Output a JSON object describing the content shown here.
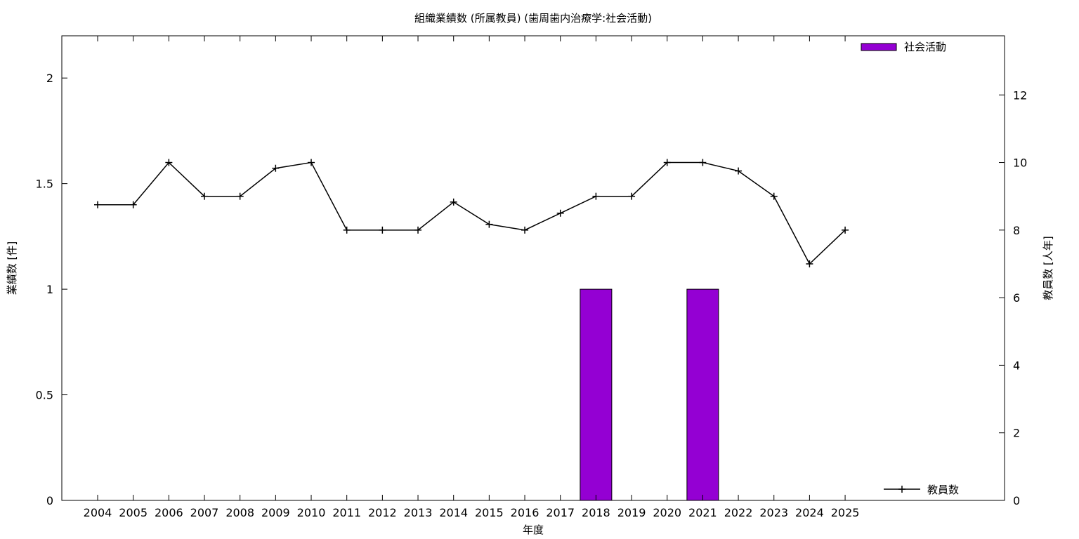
{
  "chart_data": {
    "type": "bar",
    "title": "組織業績数 (所属教員) (歯周歯内治療学:社会活動)",
    "xlabel": "年度",
    "ylabel": "業績数 [件]",
    "y2label": "教員数 [人年]",
    "categories": [
      "2004",
      "2005",
      "2006",
      "2007",
      "2008",
      "2009",
      "2010",
      "2011",
      "2012",
      "2013",
      "2014",
      "2015",
      "2016",
      "2017",
      "2018",
      "2019",
      "2020",
      "2021",
      "2022",
      "2023",
      "2024",
      "2025"
    ],
    "ylim": [
      0,
      2.2
    ],
    "yticks": [
      "0",
      "0.5",
      "1",
      "1.5",
      "2"
    ],
    "y2lim": [
      0,
      13.75
    ],
    "y2ticks": [
      "0",
      "2",
      "4",
      "6",
      "8",
      "10",
      "12"
    ],
    "series": [
      {
        "name": "社会活動",
        "type": "bar",
        "axis": "left",
        "color": "#9400d3",
        "values": [
          0,
          0,
          0,
          0,
          0,
          0,
          0,
          0,
          0,
          0,
          0,
          0,
          0,
          0,
          1,
          0,
          0,
          1,
          0,
          0,
          0,
          0
        ]
      },
      {
        "name": "教員数",
        "type": "line",
        "axis": "right",
        "color": "#000000",
        "values": [
          8.75,
          8.75,
          10,
          9,
          9,
          9.83,
          10,
          8,
          8,
          8,
          8.83,
          8.17,
          8,
          8.5,
          9,
          9,
          10,
          10,
          9.75,
          9,
          7,
          8
        ]
      }
    ],
    "legend_placement": [
      "top-right",
      "bottom-right"
    ],
    "grid": false
  }
}
